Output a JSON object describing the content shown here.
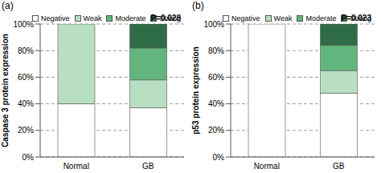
{
  "chart_data": [
    {
      "type": "bar",
      "title": "(a)",
      "y_label": "Caspase 3 protein expression",
      "annotation": "P=0.028",
      "stacked": true,
      "grid": true,
      "legend": "top",
      "categories": [
        "Normal",
        "GB"
      ],
      "series": [
        {
          "name": "Negative",
          "color": "#ffffff",
          "values": [
            40,
            37
          ]
        },
        {
          "name": "Weak",
          "color": "#b9dfc3",
          "values": [
            60,
            21
          ]
        },
        {
          "name": "Moderate",
          "color": "#62b57d",
          "values": [
            0,
            24
          ]
        },
        {
          "name": "Strong",
          "color": "#2f6d47",
          "values": [
            0,
            18
          ]
        }
      ],
      "ylim": [
        0,
        100
      ],
      "yticks": [
        {
          "value": 0,
          "label": "0%"
        },
        {
          "value": 20,
          "label": "20%"
        },
        {
          "value": 40,
          "label": "40%"
        },
        {
          "value": 60,
          "label": "60%"
        },
        {
          "value": 80,
          "label": "80%"
        },
        {
          "value": 100,
          "label": "100%"
        }
      ]
    },
    {
      "type": "bar",
      "title": "(b)",
      "y_label": "p53 protein expression",
      "annotation": "P=0.023",
      "stacked": true,
      "grid": true,
      "legend": "top",
      "categories": [
        "Normal",
        "GB"
      ],
      "series": [
        {
          "name": "Negative",
          "color": "#ffffff",
          "values": [
            100,
            48
          ]
        },
        {
          "name": "Weak",
          "color": "#b9dfc3",
          "values": [
            0,
            17
          ]
        },
        {
          "name": "Moderate",
          "color": "#62b57d",
          "values": [
            0,
            19
          ]
        },
        {
          "name": "Strong",
          "color": "#2f6d47",
          "values": [
            0,
            16
          ]
        }
      ],
      "ylim": [
        0,
        100
      ],
      "yticks": [
        {
          "value": 0,
          "label": "0%"
        },
        {
          "value": 20,
          "label": "20%"
        },
        {
          "value": 40,
          "label": "40%"
        },
        {
          "value": 60,
          "label": "60%"
        },
        {
          "value": 80,
          "label": "80%"
        },
        {
          "value": 100,
          "label": "100%"
        }
      ]
    }
  ]
}
